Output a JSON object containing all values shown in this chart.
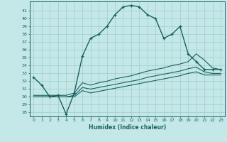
{
  "xlabel": "Humidex (Indice chaleur)",
  "background_color": "#c4e8e8",
  "line_color": "#1a6060",
  "grid_color": "#a0cccc",
  "xlim": [
    -0.5,
    23.5
  ],
  "ylim": [
    27.5,
    42.2
  ],
  "xticks": [
    0,
    1,
    2,
    3,
    4,
    5,
    6,
    7,
    8,
    9,
    10,
    11,
    12,
    13,
    14,
    15,
    16,
    17,
    18,
    19,
    20,
    21,
    22,
    23
  ],
  "yticks": [
    28,
    29,
    30,
    31,
    32,
    33,
    34,
    35,
    36,
    37,
    38,
    39,
    40,
    41
  ],
  "line1_x": [
    0,
    1,
    2,
    3,
    4,
    5,
    6,
    7,
    8,
    9,
    10,
    11,
    12,
    13,
    14,
    15,
    16,
    17,
    18,
    19,
    20,
    21,
    22,
    23
  ],
  "line1_y": [
    32.5,
    31.5,
    30.0,
    30.2,
    27.8,
    30.5,
    35.2,
    37.5,
    38.0,
    39.0,
    40.5,
    41.5,
    41.7,
    41.5,
    40.5,
    40.0,
    37.5,
    38.0,
    39.0,
    35.5,
    34.5,
    33.5,
    33.5,
    33.5
  ],
  "line2_x": [
    0,
    2,
    3,
    4,
    5,
    6,
    7,
    8,
    9,
    10,
    11,
    12,
    13,
    14,
    15,
    16,
    17,
    18,
    19,
    20,
    21,
    22,
    23
  ],
  "line2_y": [
    30.2,
    30.2,
    30.2,
    30.2,
    30.5,
    31.8,
    31.5,
    31.8,
    32.0,
    32.3,
    32.5,
    32.7,
    33.0,
    33.3,
    33.5,
    33.7,
    34.0,
    34.2,
    34.5,
    35.5,
    34.7,
    33.7,
    33.5
  ],
  "line3_x": [
    0,
    2,
    3,
    4,
    5,
    6,
    7,
    8,
    9,
    10,
    11,
    12,
    13,
    14,
    15,
    16,
    17,
    18,
    19,
    20,
    21,
    22,
    23
  ],
  "line3_y": [
    30.0,
    30.0,
    30.0,
    30.0,
    30.2,
    31.2,
    31.0,
    31.2,
    31.4,
    31.6,
    31.8,
    32.0,
    32.2,
    32.5,
    32.7,
    32.9,
    33.1,
    33.3,
    33.6,
    33.8,
    33.2,
    33.0,
    33.0
  ],
  "line4_x": [
    0,
    2,
    3,
    4,
    5,
    6,
    7,
    8,
    9,
    10,
    11,
    12,
    13,
    14,
    15,
    16,
    17,
    18,
    19,
    20,
    21,
    22,
    23
  ],
  "line4_y": [
    30.0,
    30.0,
    30.0,
    30.0,
    30.0,
    30.8,
    30.5,
    30.7,
    30.9,
    31.1,
    31.3,
    31.5,
    31.7,
    31.9,
    32.1,
    32.3,
    32.5,
    32.7,
    33.0,
    33.2,
    32.8,
    32.8,
    32.8
  ]
}
